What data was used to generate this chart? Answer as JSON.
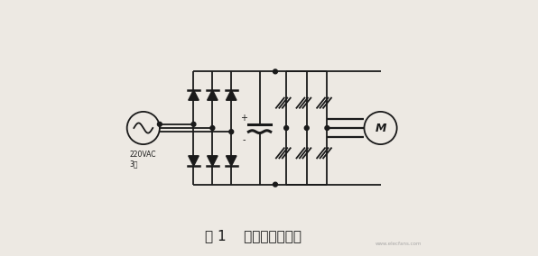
{
  "title": "图 1    通用变频器电路",
  "title_fontsize": 11,
  "bg_color": "#ede9e3",
  "line_color": "#1a1a1a",
  "label_220vac": "220VAC\n3相",
  "label_M": "M",
  "label_plus": "+",
  "label_minus": "-",
  "figsize": [
    5.96,
    2.84
  ],
  "dpi": 100,
  "watermark": "www.elecfans.com"
}
